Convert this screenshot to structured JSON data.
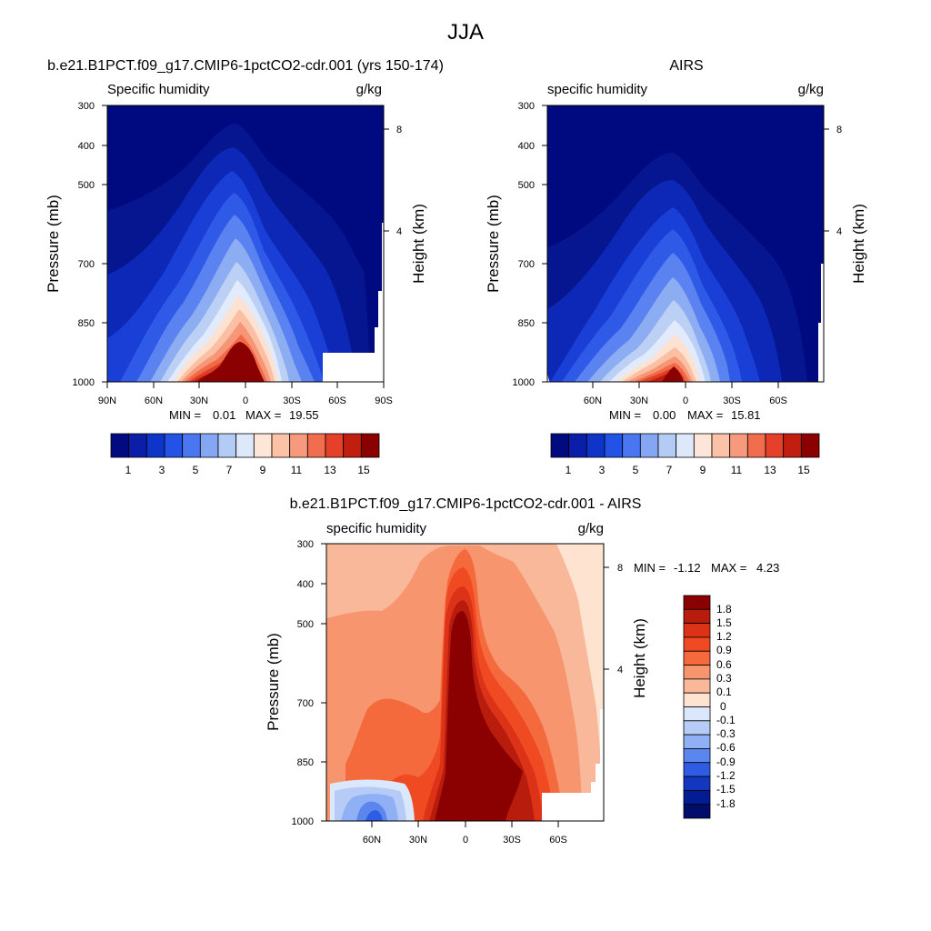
{
  "figure": {
    "title": "JJA"
  },
  "chart_data": [
    {
      "type": "heatmap",
      "title": "b.e21.B1PCT.f09_g17.CMIP6-1pctCO2-cdr.001 (yrs 150-174)",
      "subtitle_left": "Specific humidity",
      "subtitle_right": "g/kg",
      "ylabel": "Pressure (mb)",
      "y2label": "Height (km)",
      "xticks": [
        "90N",
        "60N",
        "30N",
        "0",
        "30S",
        "60S",
        "90S"
      ],
      "yticks": [
        "300",
        "400",
        "500",
        "700",
        "850",
        "1000"
      ],
      "y2ticks": [
        "8",
        "4"
      ],
      "stats": {
        "min_label": "MIN =",
        "min": "0.01",
        "max_label": "MAX =",
        "max": "19.55"
      },
      "colorbar_labels": [
        "1",
        "3",
        "5",
        "7",
        "9",
        "11",
        "13",
        "15"
      ],
      "colorbar_colors": [
        "#020a80",
        "#0a1ea8",
        "#0e35c8",
        "#2352e6",
        "#4a76f2",
        "#85a6f2",
        "#b4cbf5",
        "#dde8fb",
        "#fde6d8",
        "#fbc2a7",
        "#f7997c",
        "#f26d4e",
        "#e5402a",
        "#c21e10",
        "#8b0000"
      ]
    },
    {
      "type": "heatmap",
      "title": "AIRS",
      "subtitle_left": "specific humidity",
      "subtitle_right": "g/kg",
      "ylabel": "Pressure (mb)",
      "y2label": "Height (km)",
      "xticks": [
        "60N",
        "30N",
        "0",
        "30S",
        "60S"
      ],
      "yticks": [
        "300",
        "400",
        "500",
        "700",
        "850",
        "1000"
      ],
      "y2ticks": [
        "8",
        "4"
      ],
      "stats": {
        "min_label": "MIN =",
        "min": "0.00",
        "max_label": "MAX =",
        "max": "15.81"
      },
      "colorbar_labels": [
        "1",
        "3",
        "5",
        "7",
        "9",
        "11",
        "13",
        "15"
      ]
    },
    {
      "type": "heatmap",
      "title": "b.e21.B1PCT.f09_g17.CMIP6-1pctCO2-cdr.001 - AIRS",
      "subtitle_left": "specific humidity",
      "subtitle_right": "g/kg",
      "ylabel": "Pressure (mb)",
      "y2label": "Height (km)",
      "xticks": [
        "60N",
        "30N",
        "0",
        "30S",
        "60S"
      ],
      "yticks": [
        "300",
        "400",
        "500",
        "700",
        "850",
        "1000"
      ],
      "y2ticks": [
        "8",
        "4"
      ],
      "stats": {
        "min_label": "MIN =",
        "min": "-1.12",
        "max_label": "MAX =",
        "max": "4.23"
      },
      "colorbar_labels": [
        "1.8",
        "1.5",
        "1.2",
        "0.9",
        "0.6",
        "0.3",
        "0.1",
        "0",
        "-0.1",
        "-0.3",
        "-0.6",
        "-0.9",
        "-1.2",
        "-1.5",
        "-1.8"
      ],
      "colorbar_colors": [
        "#8b0000",
        "#b81c0c",
        "#dc3217",
        "#f04a22",
        "#f46a3d",
        "#f7956e",
        "#f9b89a",
        "#fde3d0",
        "#dbe7fb",
        "#b6ccf6",
        "#8fb0f4",
        "#5b86ee",
        "#2e5ce4",
        "#1437c0",
        "#021c94",
        "#000d6a"
      ]
    }
  ]
}
